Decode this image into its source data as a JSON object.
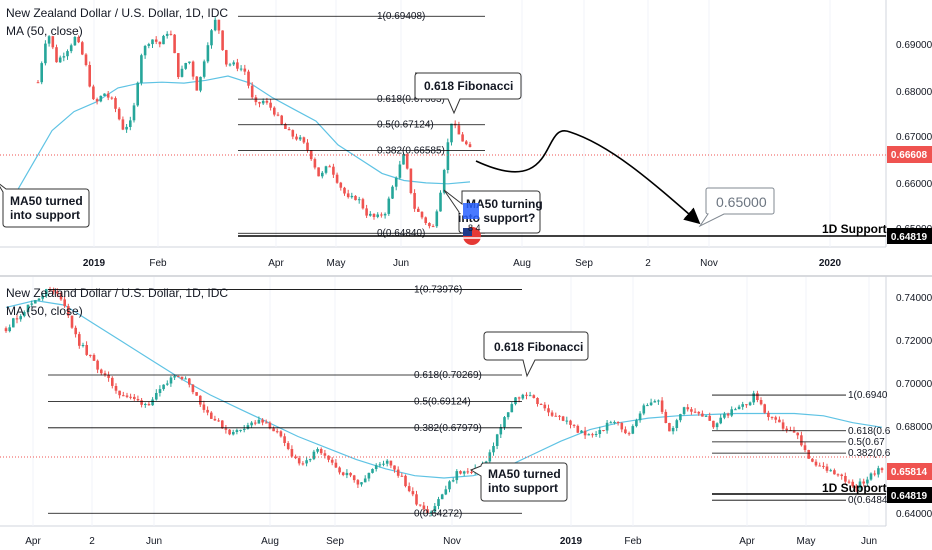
{
  "chart_data": [
    {
      "type": "candlestick",
      "title": "New Zealand Dollar / U.S. Dollar, 1D, IDC",
      "indicator": "MA (50, close)",
      "colors": {
        "up": "#26a69a",
        "down": "#ef5350",
        "ma": "#5fc3e4",
        "last": "#ef5350"
      },
      "ylim": [
        0.6455,
        0.6975
      ],
      "y_ticks": [
        "0.69000",
        "0.68000",
        "0.67000",
        "0.66000",
        "0.65000"
      ],
      "x_ticks": [
        {
          "label": "2019",
          "bold": true,
          "date": "2019-01-01"
        },
        {
          "label": "Feb",
          "date": "2019-02-01"
        },
        {
          "label": "Apr",
          "date": "2019-04-01"
        },
        {
          "label": "May",
          "date": "2019-05-01"
        },
        {
          "label": "Jun",
          "date": "2019-06-01"
        },
        {
          "label": "Aug",
          "date": "2019-08-01"
        },
        {
          "label": "Sep",
          "date": "2019-09-01"
        },
        {
          "label": "2",
          "date": "2019-10-02"
        },
        {
          "label": "Nov",
          "date": "2019-11-01"
        },
        {
          "label": "2020",
          "bold": true,
          "date": "2020-01-01"
        }
      ],
      "price_path": [
        [
          0.6802,
          0.6912,
          0.6845,
          0.6868,
          0.6897,
          0.6845,
          0.6752,
          0.678,
          0.676,
          0.6705,
          0.6718,
          0.6862,
          0.6895,
          0.6882,
          0.6916,
          0.6812,
          0.6854,
          0.6782,
          0.6881,
          0.6938,
          0.6842,
          0.6838,
          0.6826,
          0.6752,
          0.6762,
          0.6745,
          0.671,
          0.669,
          0.668,
          0.665,
          0.66,
          0.663,
          0.659,
          0.6555,
          0.656,
          0.6525,
          0.6515,
          0.653,
          0.6598,
          0.665,
          0.654,
          0.6515,
          0.649,
          0.659,
          0.672,
          0.6685,
          0.666
        ]
      ],
      "ma_path": [
        0.654,
        0.662,
        0.67,
        0.674,
        0.676,
        0.679,
        0.68,
        0.6802,
        0.68,
        0.6806,
        0.6815,
        0.68,
        0.677,
        0.6745,
        0.672,
        0.667,
        0.664,
        0.661,
        0.6595,
        0.659,
        0.6588,
        0.6592
      ],
      "fibonacci": [
        {
          "label": "1(0.69408)",
          "value": 0.69408
        },
        {
          "label": "0.618(0.67663)",
          "value": 0.67663
        },
        {
          "label": "0.5(0.67124)",
          "value": 0.67124
        },
        {
          "label": "0.382(0.66585)",
          "value": 0.66585
        },
        {
          "label": "0(0.64840)",
          "value": 0.6484
        }
      ],
      "support": {
        "label": "1D Support",
        "value": 0.64819,
        "price_label": "0.64819"
      },
      "last_price": {
        "value": 0.66608,
        "label": "0.66608"
      },
      "target": {
        "label": "0.65000",
        "value": 0.65
      },
      "annotations": [
        {
          "text": "0.618 Fibonacci"
        },
        {
          "text": "MA50 turning into support?"
        },
        {
          "text": "MA50 turned into support"
        }
      ]
    },
    {
      "type": "candlestick",
      "title": "New Zealand Dollar / U.S. Dollar, 1D, IDC",
      "indicator": "MA (50, close)",
      "colors": {
        "up": "#26a69a",
        "down": "#ef5350",
        "ma": "#5fc3e4",
        "last": "#ef5350"
      },
      "ylim": [
        0.6372,
        0.7452
      ],
      "y_ticks": [
        "0.74000",
        "0.72000",
        "0.70000",
        "0.68000",
        "0.66000",
        "0.64000"
      ],
      "x_ticks": [
        {
          "label": "Apr",
          "date": "2018-04-01"
        },
        {
          "label": "2",
          "date": "2018-05-02"
        },
        {
          "label": "Jun",
          "date": "2018-06-01"
        },
        {
          "label": "Aug",
          "date": "2018-08-01"
        },
        {
          "label": "Sep",
          "date": "2018-09-01"
        },
        {
          "label": "Nov",
          "date": "2018-11-01"
        },
        {
          "label": "2019",
          "bold": true,
          "date": "2019-01-01"
        },
        {
          "label": "Feb",
          "date": "2019-02-01"
        },
        {
          "label": "Apr",
          "date": "2019-04-01"
        },
        {
          "label": "May",
          "date": "2019-05-01"
        },
        {
          "label": "Jun",
          "date": "2019-06-01"
        }
      ],
      "price_path": [
        [
          0.723,
          0.729,
          0.735,
          0.7397,
          0.736,
          0.718,
          0.71,
          0.702,
          0.695,
          0.692,
          0.69,
          0.696,
          0.704,
          0.699,
          0.688,
          0.682,
          0.677,
          0.681,
          0.6825,
          0.679,
          0.67,
          0.663,
          0.67,
          0.664,
          0.66,
          0.656,
          0.662,
          0.666,
          0.658,
          0.648,
          0.643,
          0.652,
          0.661,
          0.66,
          0.665,
          0.68,
          0.692,
          0.695,
          0.688,
          0.685,
          0.681,
          0.676,
          0.678,
          0.683,
          0.677,
          0.688,
          0.693,
          0.678,
          0.688,
          0.687,
          0.681,
          0.686,
          0.688,
          0.694,
          0.684,
          0.68,
          0.676,
          0.664,
          0.662,
          0.66,
          0.654,
          0.658,
          0.662
        ]
      ],
      "ma_path": [
        0.732,
        0.735,
        0.733,
        0.725,
        0.717,
        0.709,
        0.701,
        0.694,
        0.688,
        0.682,
        0.676,
        0.671,
        0.666,
        0.662,
        0.659,
        0.658,
        0.659,
        0.662,
        0.668,
        0.674,
        0.679,
        0.682,
        0.684,
        0.685,
        0.6855,
        0.686,
        0.686,
        0.686,
        0.685,
        0.682,
        0.68
      ],
      "fibonacci": [
        {
          "label": "1(0.73976)",
          "value": 0.73976
        },
        {
          "label": "0.618(0.70269)",
          "value": 0.70269
        },
        {
          "label": "0.5(0.69124)",
          "value": 0.69124
        },
        {
          "label": "0.382(0.67979)",
          "value": 0.67979
        },
        {
          "label": "0(0.64272)",
          "value": 0.64272
        }
      ],
      "fibonacci_recent": [
        {
          "label": "1(0.6940",
          "value": 0.694
        },
        {
          "label": "0.618(0.6",
          "value": 0.6785
        },
        {
          "label": "0.5(0.67",
          "value": 0.6737
        },
        {
          "label": "0.382(0.6",
          "value": 0.6688
        },
        {
          "label": "0(0.6484",
          "value": 0.6484
        }
      ],
      "support": {
        "label": "1D Support",
        "value": 0.64819,
        "price_label": "0.64819"
      },
      "last_price": {
        "value": 0.65814,
        "label": "0.65814"
      },
      "annotations": [
        {
          "text": "0.618 Fibonacci"
        },
        {
          "text": "MA50 turned into support"
        }
      ]
    }
  ]
}
